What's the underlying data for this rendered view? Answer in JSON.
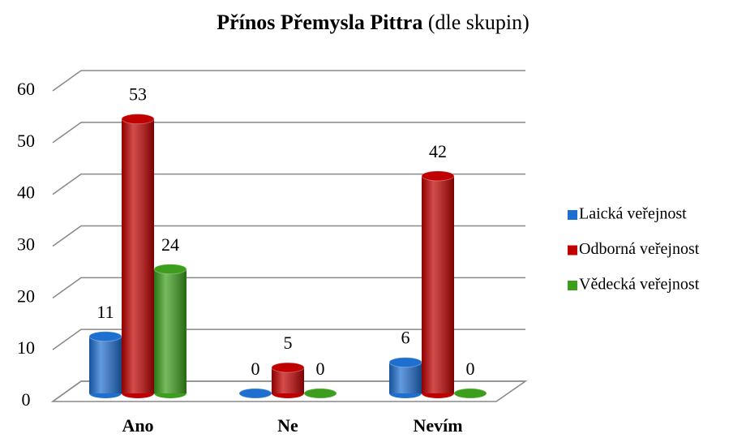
{
  "chart_data": {
    "type": "bar3d",
    "title": "Přínos Přemysla Pittra",
    "subtitle": "(dle skupin)",
    "categories": [
      "Ano",
      "Ne",
      "Nevím"
    ],
    "series": [
      {
        "name": "Laická veřejnost",
        "color": "#1f6fd0",
        "values": [
          11,
          0,
          6
        ]
      },
      {
        "name": "Odborná veřejnost",
        "color": "#c00000",
        "values": [
          53,
          5,
          42
        ]
      },
      {
        "name": "Vědecká veřejnost",
        "color": "#3c9e1c",
        "values": [
          24,
          0,
          0
        ]
      }
    ],
    "ylim": [
      0,
      60
    ],
    "yticks": [
      0,
      10,
      20,
      30,
      40,
      50,
      60
    ],
    "grid": true,
    "legend": "right"
  }
}
